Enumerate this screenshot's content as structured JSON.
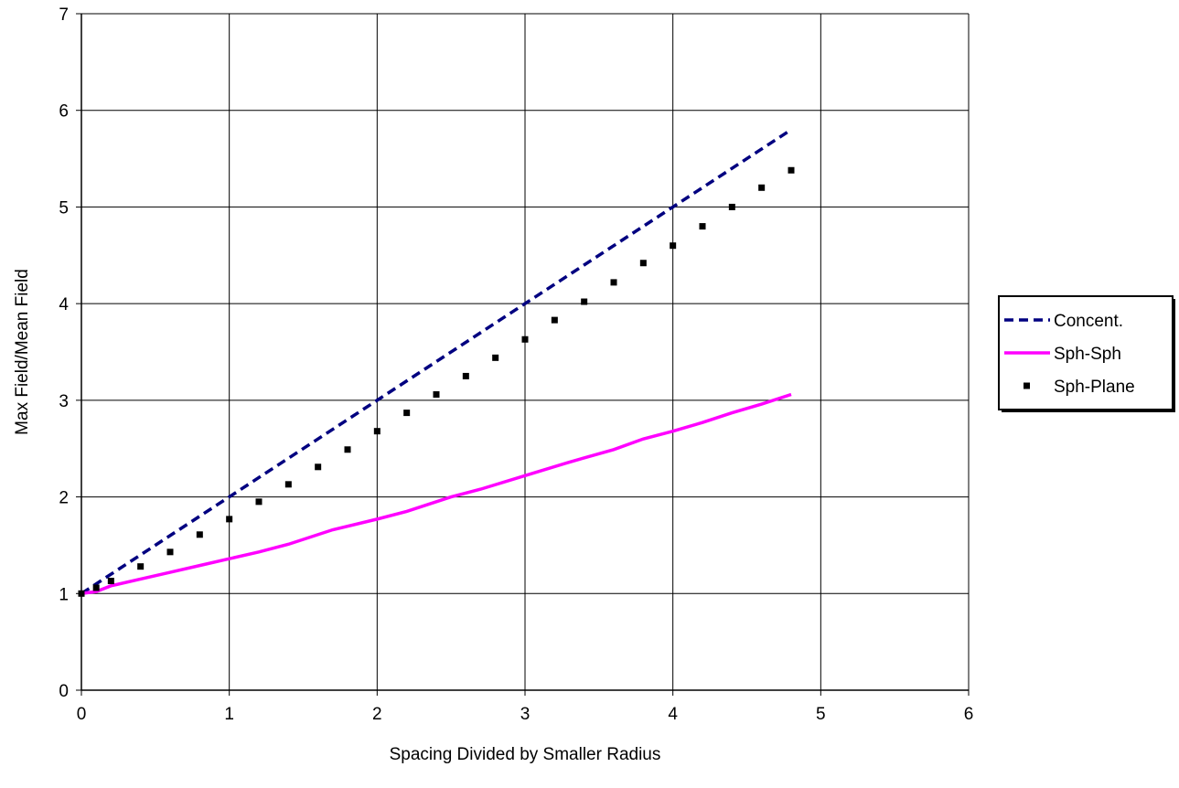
{
  "chart_data": {
    "type": "line",
    "title": "",
    "xlabel": "Spacing Divided by Smaller Radius",
    "ylabel": "Max Field/Mean Field",
    "xlim": [
      0,
      6
    ],
    "ylim": [
      0,
      7
    ],
    "x_ticks": [
      "0",
      "1",
      "2",
      "3",
      "4",
      "5",
      "6"
    ],
    "y_ticks": [
      "0",
      "1",
      "2",
      "3",
      "4",
      "5",
      "6",
      "7"
    ],
    "grid": true,
    "legend_position": "right",
    "series": [
      {
        "name": "Concent.",
        "style": "dashed-line",
        "color": "#000080",
        "x": [
          0,
          1,
          2,
          3,
          4,
          4.8
        ],
        "y": [
          1,
          2,
          3,
          4,
          5,
          5.8
        ]
      },
      {
        "name": "Sph-Sph",
        "style": "solid-line",
        "color": "#ff00ff",
        "x": [
          0,
          0.1,
          0.2,
          0.4,
          0.6,
          0.8,
          1.0,
          1.2,
          1.4,
          1.7,
          2.0,
          2.2,
          2.5,
          2.7,
          3.0,
          3.3,
          3.6,
          3.8,
          4.0,
          4.2,
          4.4,
          4.6,
          4.8
        ],
        "y": [
          1.0,
          1.02,
          1.08,
          1.15,
          1.22,
          1.29,
          1.36,
          1.43,
          1.51,
          1.66,
          1.77,
          1.85,
          2.0,
          2.08,
          2.22,
          2.36,
          2.49,
          2.6,
          2.68,
          2.77,
          2.87,
          2.96,
          3.06
        ]
      },
      {
        "name": "Sph-Plane",
        "style": "markers",
        "color": "#000000",
        "x": [
          0,
          0.1,
          0.2,
          0.4,
          0.6,
          0.8,
          1.0,
          1.2,
          1.4,
          1.6,
          1.8,
          2.0,
          2.2,
          2.4,
          2.6,
          2.8,
          3.0,
          3.2,
          3.4,
          3.6,
          3.8,
          4.0,
          4.2,
          4.4,
          4.6,
          4.8
        ],
        "y": [
          1.0,
          1.06,
          1.13,
          1.28,
          1.43,
          1.61,
          1.77,
          1.95,
          2.13,
          2.31,
          2.49,
          2.68,
          2.87,
          3.06,
          3.25,
          3.44,
          3.63,
          3.83,
          4.02,
          4.22,
          4.42,
          4.6,
          4.8,
          5.0,
          5.2,
          5.38
        ]
      }
    ]
  }
}
